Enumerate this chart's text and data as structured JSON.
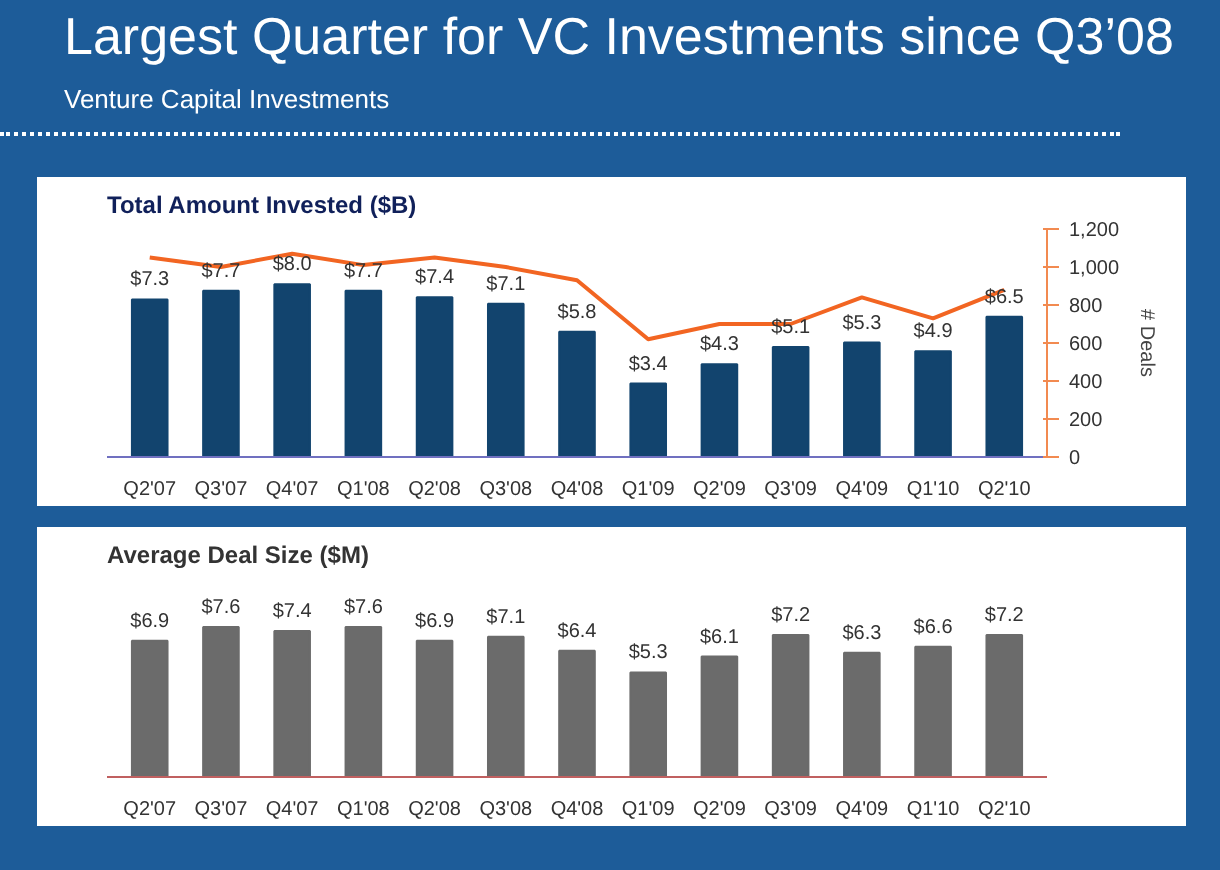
{
  "chart_data": [
    {
      "type": "other",
      "title": "Largest Quarter for VC Investments since Q3’08",
      "subtitle": "Venture Capital Investments"
    },
    {
      "type": "bar",
      "title": "Total Amount Invested ($B)",
      "y2label": "# Deals",
      "categories": [
        "Q2'07",
        "Q3'07",
        "Q4'07",
        "Q1'08",
        "Q2'08",
        "Q3'08",
        "Q4'08",
        "Q1'09",
        "Q2'09",
        "Q3'09",
        "Q4'09",
        "Q1'10",
        "Q2'10"
      ],
      "series": [
        {
          "type": "bar",
          "color": "#12446e",
          "values": [
            7.3,
            7.7,
            8.0,
            7.7,
            7.4,
            7.1,
            5.8,
            3.4,
            4.3,
            5.1,
            5.3,
            4.9,
            6.5
          ],
          "value_labels": [
            "$7.3",
            "$7.7",
            "$8.0",
            "$7.7",
            "$7.4",
            "$7.1",
            "$5.8",
            "$3.4",
            "$4.3",
            "$5.1",
            "$5.3",
            "$4.9",
            "$6.5"
          ]
        },
        {
          "type": "line",
          "axis": "y2",
          "color": "#f26522",
          "values": [
            1050,
            1000,
            1070,
            1010,
            1050,
            1000,
            930,
            620,
            700,
            700,
            840,
            730,
            880
          ]
        }
      ],
      "y2lim": [
        0,
        1200
      ],
      "y2ticks": [
        0,
        200,
        400,
        600,
        800,
        {
          "value": 1000,
          "label": "1,000"
        },
        {
          "value": 1200,
          "label": "1,200"
        }
      ]
    },
    {
      "type": "bar",
      "title": "Average Deal Size ($M)",
      "categories": [
        "Q2'07",
        "Q3'07",
        "Q4'07",
        "Q1'08",
        "Q2'08",
        "Q3'08",
        "Q4'08",
        "Q1'09",
        "Q2'09",
        "Q3'09",
        "Q4'09",
        "Q1'10",
        "Q2'10"
      ],
      "series": [
        {
          "type": "bar",
          "color": "#6b6b6b",
          "values": [
            6.9,
            7.6,
            7.4,
            7.6,
            6.9,
            7.1,
            6.4,
            5.3,
            6.1,
            7.2,
            6.3,
            6.6,
            7.2
          ],
          "value_labels": [
            "$6.9",
            "$7.6",
            "$7.4",
            "$7.6",
            "$6.9",
            "$7.1",
            "$6.4",
            "$5.3",
            "$6.1",
            "$7.2",
            "$6.3",
            "$6.6",
            "$7.2"
          ]
        }
      ]
    }
  ]
}
